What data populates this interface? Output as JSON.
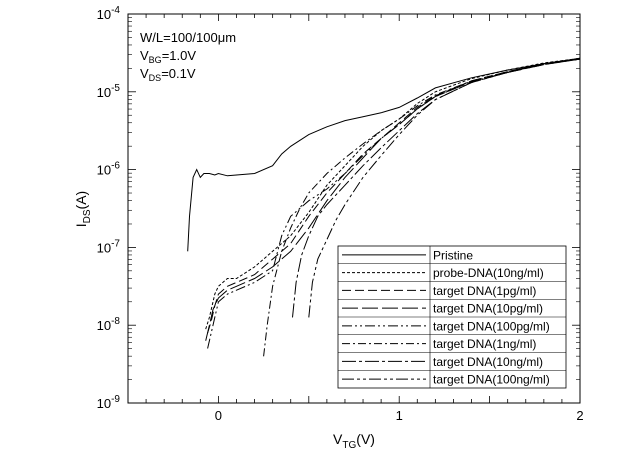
{
  "chart_data": {
    "type": "line",
    "title": "",
    "xlabel": {
      "main": "V",
      "sub": "TG",
      "unit": "(V)"
    },
    "ylabel": {
      "main": "I",
      "sub": "DS",
      "unit": "(A)"
    },
    "xlim": [
      -0.5,
      2
    ],
    "ylim_exponent": [
      -9,
      -4
    ],
    "y_scale": "log",
    "grid": false,
    "legend_position": "bottom-right",
    "x_ticks": [
      {
        "value": 0,
        "label": "0"
      },
      {
        "value": 1,
        "label": "1"
      },
      {
        "value": 2,
        "label": "2"
      }
    ],
    "y_ticks": [
      {
        "exp": -9,
        "base": "10",
        "sup": "-9"
      },
      {
        "exp": -8,
        "base": "10",
        "sup": "-8"
      },
      {
        "exp": -7,
        "base": "10",
        "sup": "-7"
      },
      {
        "exp": -6,
        "base": "10",
        "sup": "-6"
      },
      {
        "exp": -5,
        "base": "10",
        "sup": "-5"
      },
      {
        "exp": -4,
        "base": "10",
        "sup": "-4"
      }
    ],
    "annotations": [
      {
        "main": "W/L=100/100",
        "sub": "",
        "rest": "μm"
      },
      {
        "main": "V",
        "sub": "BG",
        "rest": "=1.0V"
      },
      {
        "main": "V",
        "sub": "DS",
        "rest": "=0.1V"
      }
    ],
    "series": [
      {
        "name": "Pristine",
        "dash": "",
        "x": [
          -0.17,
          -0.16,
          -0.14,
          -0.12,
          -0.1,
          -0.08,
          -0.05,
          -0.02,
          0.0,
          0.05,
          0.1,
          0.2,
          0.3,
          0.35,
          0.4,
          0.5,
          0.6,
          0.7,
          0.8,
          0.9,
          1.0,
          1.1,
          1.2,
          1.4,
          1.6,
          1.8,
          2.0
        ],
        "log_y": [
          -7.05,
          -6.6,
          -6.1,
          -6.0,
          -6.1,
          -6.05,
          -6.05,
          -6.07,
          -6.05,
          -6.08,
          -6.07,
          -6.05,
          -5.95,
          -5.8,
          -5.7,
          -5.55,
          -5.45,
          -5.37,
          -5.32,
          -5.27,
          -5.2,
          -5.08,
          -4.95,
          -4.82,
          -4.72,
          -4.64,
          -4.58
        ]
      },
      {
        "name": "probe-DNA(10ng/ml)",
        "dash": "3,2",
        "x": [
          -0.07,
          -0.05,
          -0.02,
          0.0,
          0.05,
          0.1,
          0.2,
          0.3,
          0.4,
          0.5,
          0.6,
          0.7,
          0.8,
          0.9,
          1.0,
          1.1,
          1.2,
          1.4,
          1.6,
          1.8,
          2.0
        ],
        "log_y": [
          -8.05,
          -7.9,
          -7.6,
          -7.5,
          -7.4,
          -7.4,
          -7.25,
          -7.05,
          -6.85,
          -6.55,
          -6.2,
          -5.95,
          -5.7,
          -5.5,
          -5.35,
          -5.15,
          -5.0,
          -4.83,
          -4.72,
          -4.63,
          -4.57
        ]
      },
      {
        "name": "target DNA(1pg/ml)",
        "dash": "9,4",
        "x": [
          -0.06,
          -0.04,
          -0.02,
          0.0,
          0.05,
          0.1,
          0.2,
          0.3,
          0.4,
          0.5,
          0.6,
          0.7,
          0.8,
          0.9,
          1.0,
          1.1,
          1.2,
          1.4,
          1.6,
          1.8,
          2.0
        ],
        "log_y": [
          -8.1,
          -7.95,
          -7.75,
          -7.6,
          -7.5,
          -7.45,
          -7.35,
          -7.15,
          -6.95,
          -6.6,
          -6.3,
          -6.05,
          -5.8,
          -5.6,
          -5.4,
          -5.2,
          -5.05,
          -4.86,
          -4.74,
          -4.64,
          -4.58
        ]
      },
      {
        "name": "target DNA(10pg/ml)",
        "dash": "16,4",
        "x": [
          -0.07,
          -0.05,
          -0.03,
          0.0,
          0.05,
          0.1,
          0.2,
          0.3,
          0.4,
          0.5,
          0.6,
          0.7,
          0.8,
          0.9,
          1.0,
          1.1,
          1.2,
          1.4,
          1.6,
          1.8,
          2.0
        ],
        "log_y": [
          -8.2,
          -8.0,
          -7.8,
          -7.65,
          -7.55,
          -7.5,
          -7.4,
          -7.25,
          -7.05,
          -6.75,
          -6.4,
          -6.1,
          -5.85,
          -5.6,
          -5.42,
          -5.22,
          -5.06,
          -4.87,
          -4.75,
          -4.65,
          -4.58
        ]
      },
      {
        "name": "target DNA(100pg/ml)",
        "dash": "10,3,2,3,2,3",
        "x": [
          -0.06,
          -0.04,
          -0.02,
          0.0,
          0.05,
          0.1,
          0.2,
          0.3,
          0.35,
          0.4,
          0.5,
          0.6,
          0.7,
          0.8,
          0.9,
          1.0,
          1.1,
          1.2,
          1.4,
          1.6,
          1.8,
          2.0
        ],
        "log_y": [
          -8.3,
          -8.1,
          -7.9,
          -7.7,
          -7.6,
          -7.55,
          -7.45,
          -7.3,
          -6.85,
          -6.6,
          -6.4,
          -6.25,
          -6.05,
          -5.82,
          -5.6,
          -5.42,
          -5.22,
          -5.06,
          -4.87,
          -4.75,
          -4.65,
          -4.58
        ]
      },
      {
        "name": "target DNA(1ng/ml)",
        "dash": "8,3,2,3",
        "x": [
          0.25,
          0.27,
          0.3,
          0.35,
          0.4,
          0.45,
          0.5,
          0.6,
          0.7,
          0.8,
          0.9,
          1.0,
          1.1,
          1.2,
          1.4,
          1.6,
          1.8,
          2.0
        ],
        "log_y": [
          -8.4,
          -8.0,
          -7.5,
          -7.05,
          -6.75,
          -6.5,
          -6.3,
          -6.05,
          -5.85,
          -5.67,
          -5.5,
          -5.35,
          -5.18,
          -5.04,
          -4.86,
          -4.74,
          -4.64,
          -4.57
        ]
      },
      {
        "name": "target DNA(10ng/ml)",
        "dash": "14,3,3,3",
        "x": [
          0.41,
          0.43,
          0.46,
          0.5,
          0.55,
          0.6,
          0.7,
          0.8,
          0.9,
          1.0,
          1.1,
          1.2,
          1.4,
          1.6,
          1.8,
          2.0
        ],
        "log_y": [
          -7.9,
          -7.45,
          -7.1,
          -6.85,
          -6.6,
          -6.45,
          -6.2,
          -5.95,
          -5.72,
          -5.5,
          -5.28,
          -5.1,
          -4.88,
          -4.75,
          -4.64,
          -4.57
        ]
      },
      {
        "name": "target DNA(100ng/ml)",
        "dash": "12,3,3,3,3,3",
        "x": [
          0.5,
          0.52,
          0.55,
          0.6,
          0.65,
          0.7,
          0.8,
          0.9,
          1.0,
          1.1,
          1.2,
          1.4,
          1.6,
          1.8,
          2.0
        ],
        "log_y": [
          -7.9,
          -7.45,
          -7.15,
          -6.9,
          -6.65,
          -6.45,
          -6.1,
          -5.82,
          -5.55,
          -5.3,
          -5.1,
          -4.88,
          -4.75,
          -4.64,
          -4.57
        ]
      }
    ]
  }
}
